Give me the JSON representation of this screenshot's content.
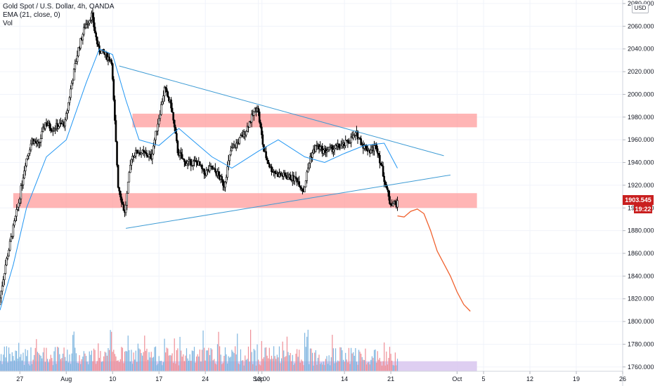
{
  "legend": {
    "symbol": "Gold Spot / U.S. Dollar, 4h, OANDA",
    "ema": "EMA (21, close, 0)",
    "vol": "Vol"
  },
  "currency": "USD",
  "last_price": "1903.545",
  "countdown": "19:22",
  "colors": {
    "up": "#000000",
    "down": "#000000",
    "ema": "#2196f3",
    "trendline": "#3d9bd4",
    "zone": "#ff9c9c",
    "projection": "#f0612e",
    "vol_zone": "#d8c5ee",
    "vol_up": "#7fb6e0",
    "vol_down": "#ef8f97",
    "price_tag": "#c91f1f"
  },
  "chart_data": {
    "type": "candlestick",
    "y_axis": {
      "range": [
        1750,
        2080
      ],
      "ticks": [
        1760,
        1780,
        1800,
        1820,
        1840,
        1860,
        1880,
        1900,
        1920,
        1940,
        1960,
        1980,
        2000,
        2020,
        2040,
        2060,
        2080
      ],
      "tick_labels": [
        "1760.000",
        "1780.000",
        "1800.000",
        "1820.000",
        "1840.000",
        "1860.000",
        "1880.000",
        "1900.000",
        "1920.000",
        "1940.000",
        "1960.000",
        "1980.000",
        "2000.000",
        "2020.000",
        "2040.000",
        "2060.000",
        "2080.000"
      ]
    },
    "x_axis": {
      "range": [
        "2020-07-24",
        "2020-10-26"
      ],
      "tick_dates": [
        "2020-07-27",
        "2020-08-03",
        "2020-08-10",
        "2020-08-17",
        "2020-08-24",
        "2020-09-01",
        "2020-09-01T13:00",
        "2020-09-14",
        "2020-09-21",
        "2020-10-01",
        "2020-10-05",
        "2020-10-12",
        "2020-10-19",
        "2020-10-26"
      ],
      "tick_labels": [
        "27",
        "Aug",
        "10",
        "17",
        "24",
        "Sep",
        "13:00",
        "14",
        "21",
        "Oct",
        "5",
        "12",
        "19",
        "26"
      ]
    },
    "price_path": [
      [
        "2020-07-24",
        1815
      ],
      [
        "2020-07-25",
        1850
      ],
      [
        "2020-07-27",
        1905
      ],
      [
        "2020-07-28",
        1940
      ],
      [
        "2020-07-29",
        1960
      ],
      [
        "2020-07-30",
        1955
      ],
      [
        "2020-07-31",
        1975
      ],
      [
        "2020-08-01",
        1970
      ],
      [
        "2020-08-03",
        1975
      ],
      [
        "2020-08-04",
        2010
      ],
      [
        "2020-08-05",
        2040
      ],
      [
        "2020-08-06",
        2060
      ],
      [
        "2020-08-07",
        2070
      ],
      [
        "2020-08-08",
        2040
      ],
      [
        "2020-08-10",
        2030
      ],
      [
        "2020-08-11",
        1920
      ],
      [
        "2020-08-12",
        1895
      ],
      [
        "2020-08-13",
        1945
      ],
      [
        "2020-08-14",
        1950
      ],
      [
        "2020-08-16",
        1945
      ],
      [
        "2020-08-17",
        1975
      ],
      [
        "2020-08-18",
        2005
      ],
      [
        "2020-08-19",
        1990
      ],
      [
        "2020-08-20",
        1950
      ],
      [
        "2020-08-21",
        1940
      ],
      [
        "2020-08-23",
        1940
      ],
      [
        "2020-08-24",
        1930
      ],
      [
        "2020-08-25",
        1935
      ],
      [
        "2020-08-26",
        1930
      ],
      [
        "2020-08-27",
        1920
      ],
      [
        "2020-08-28",
        1950
      ],
      [
        "2020-08-30",
        1965
      ],
      [
        "2020-09-01",
        1990
      ],
      [
        "2020-09-02",
        1950
      ],
      [
        "2020-09-03",
        1935
      ],
      [
        "2020-09-04",
        1930
      ],
      [
        "2020-09-07",
        1925
      ],
      [
        "2020-09-08",
        1915
      ],
      [
        "2020-09-09",
        1945
      ],
      [
        "2020-09-10",
        1955
      ],
      [
        "2020-09-11",
        1950
      ],
      [
        "2020-09-14",
        1955
      ],
      [
        "2020-09-15",
        1960
      ],
      [
        "2020-09-16",
        1965
      ],
      [
        "2020-09-17",
        1955
      ],
      [
        "2020-09-18",
        1950
      ],
      [
        "2020-09-19",
        1955
      ],
      [
        "2020-09-20",
        1930
      ],
      [
        "2020-09-21",
        1905
      ],
      [
        "2020-09-22",
        1903.5
      ]
    ],
    "ema_path": [
      [
        "2020-07-24",
        1810
      ],
      [
        "2020-07-26",
        1850
      ],
      [
        "2020-07-28",
        1900
      ],
      [
        "2020-07-31",
        1945
      ],
      [
        "2020-08-03",
        1960
      ],
      [
        "2020-08-06",
        2010
      ],
      [
        "2020-08-08",
        2040
      ],
      [
        "2020-08-10",
        2035
      ],
      [
        "2020-08-12",
        1995
      ],
      [
        "2020-08-14",
        1960
      ],
      [
        "2020-08-17",
        1955
      ],
      [
        "2020-08-20",
        1970
      ],
      [
        "2020-08-22",
        1960
      ],
      [
        "2020-08-25",
        1945
      ],
      [
        "2020-08-28",
        1935
      ],
      [
        "2020-09-01",
        1950
      ],
      [
        "2020-09-04",
        1960
      ],
      [
        "2020-09-08",
        1945
      ],
      [
        "2020-09-11",
        1940
      ],
      [
        "2020-09-14",
        1948
      ],
      [
        "2020-09-17",
        1955
      ],
      [
        "2020-09-20",
        1957
      ],
      [
        "2020-09-22",
        1935
      ]
    ],
    "zones": [
      {
        "y_range": [
          1971,
          1983
        ],
        "x_range": [
          "2020-08-13",
          "2020-10-04"
        ]
      },
      {
        "y_range": [
          1900,
          1913
        ],
        "x_range": [
          "2020-07-26",
          "2020-10-04"
        ]
      }
    ],
    "trendlines": [
      {
        "from": [
          "2020-08-11",
          2025
        ],
        "to": [
          "2020-09-29",
          1946
        ]
      },
      {
        "from": [
          "2020-08-12",
          1882
        ],
        "to": [
          "2020-09-30",
          1929
        ]
      }
    ],
    "projection": [
      [
        "2020-09-22",
        1893
      ],
      [
        "2020-09-23",
        1892
      ],
      [
        "2020-09-24",
        1897
      ],
      [
        "2020-09-25",
        1899
      ],
      [
        "2020-09-26",
        1895
      ],
      [
        "2020-09-27",
        1880
      ],
      [
        "2020-09-28",
        1862
      ],
      [
        "2020-09-30",
        1840
      ],
      [
        "2020-10-01",
        1826
      ],
      [
        "2020-10-02",
        1815
      ],
      [
        "2020-10-03",
        1809
      ]
    ]
  }
}
